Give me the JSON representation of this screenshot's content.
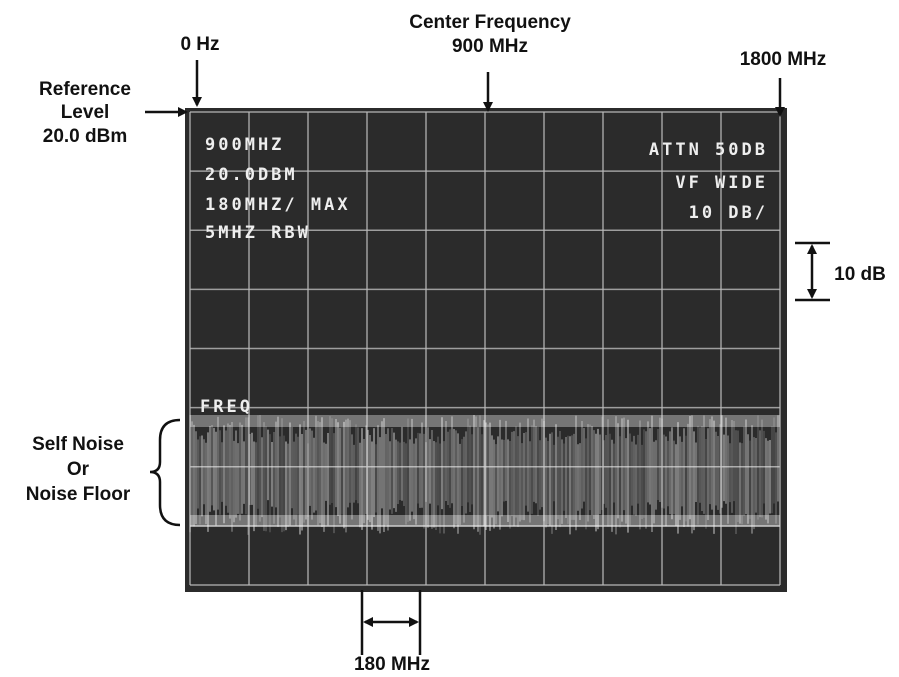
{
  "annotations": {
    "zero_hz": "0 Hz",
    "center": [
      "Center Frequency",
      "900 MHz"
    ],
    "end": "1800 MHz",
    "reference": [
      "Reference",
      "Level",
      "20.0 dBm"
    ],
    "div": "10 dB",
    "noise": [
      "Self Noise",
      "Or",
      "Noise Floor"
    ],
    "span": "180 MHz"
  },
  "screen": {
    "left": [
      "900MHZ",
      "20.0DBM",
      "180MHZ/ MAX",
      "5MHZ RBW"
    ],
    "right": [
      "ATTN 50DB",
      "VF WIDE",
      "10 DB/"
    ],
    "marker": "FREQ"
  }
}
